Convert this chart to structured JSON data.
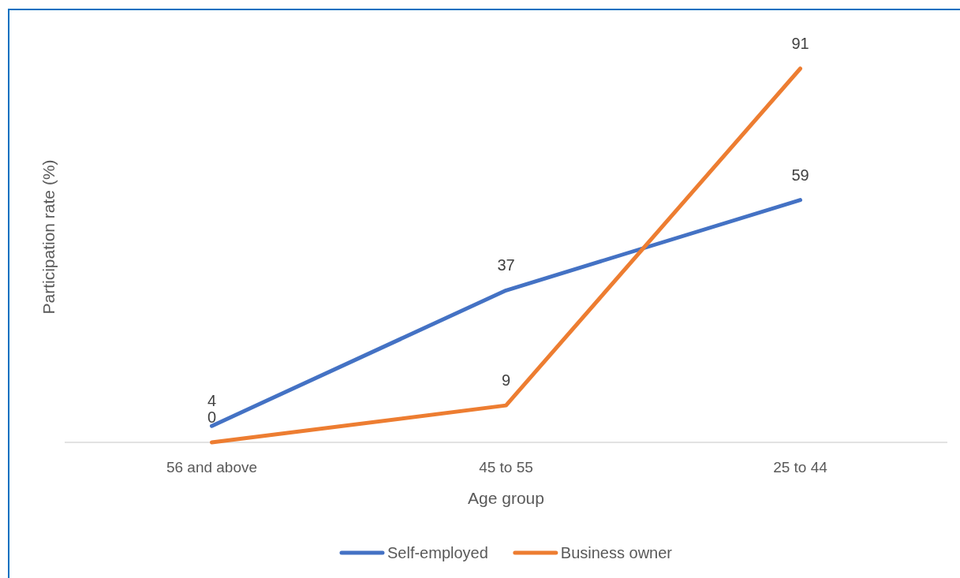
{
  "chart_data": {
    "type": "line",
    "xlabel": "Age group",
    "ylabel": "Participation rate (%)",
    "categories": [
      "56 and above",
      "45 to 55",
      "25 to 44"
    ],
    "series": [
      {
        "name": "Self-employed",
        "color": "#4472c4",
        "values": [
          4,
          37,
          59
        ]
      },
      {
        "name": "Business owner",
        "color": "#ed7d31",
        "values": [
          0,
          9,
          91
        ]
      }
    ],
    "tick_labels": "x",
    "data_labels": true,
    "legend": "bottom",
    "line_style": "solid"
  }
}
